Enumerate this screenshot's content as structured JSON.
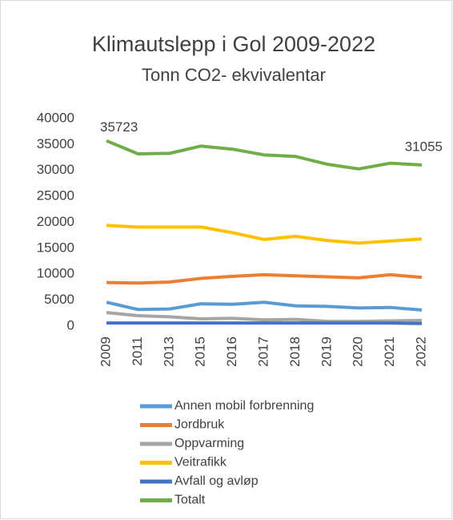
{
  "chart_data": {
    "type": "line",
    "title": "Klimautslepp i Gol 2009-2022",
    "subtitle": "Tonn CO2- ekvivalentar",
    "categories": [
      "2009",
      "2011",
      "2013",
      "2015",
      "2016",
      "2017",
      "2018",
      "2019",
      "2020",
      "2021",
      "2022"
    ],
    "series": [
      {
        "name": "Annen mobil forbrenning",
        "color": "#5b9bd5",
        "values": [
          4600,
          3200,
          3300,
          4300,
          4200,
          4600,
          3900,
          3800,
          3500,
          3600,
          3100
        ]
      },
      {
        "name": "Jordbruk",
        "color": "#ed7d31",
        "values": [
          8400,
          8300,
          8500,
          9200,
          9600,
          9900,
          9700,
          9500,
          9300,
          9900,
          9400
        ]
      },
      {
        "name": "Oppvarming",
        "color": "#a5a5a5",
        "values": [
          2600,
          2000,
          1800,
          1400,
          1500,
          1200,
          1300,
          900,
          900,
          1000,
          1100
        ]
      },
      {
        "name": "Veitrafikk",
        "color": "#ffc000",
        "values": [
          19400,
          19100,
          19100,
          19100,
          18000,
          16700,
          17300,
          16500,
          16000,
          16400,
          16800
        ]
      },
      {
        "name": "Avfall og avløp",
        "color": "#4472c4",
        "values": [
          600,
          600,
          600,
          600,
          600,
          600,
          600,
          600,
          600,
          600,
          500
        ]
      },
      {
        "name": "Totalt",
        "color": "#70ad47",
        "values": [
          35723,
          33200,
          33300,
          34700,
          34100,
          33000,
          32700,
          31200,
          30300,
          31400,
          31055
        ]
      }
    ],
    "ylim": [
      0,
      40000
    ],
    "yticks": [
      0,
      5000,
      10000,
      15000,
      20000,
      25000,
      30000,
      35000,
      40000
    ],
    "grid": false,
    "legend": "bottom"
  }
}
